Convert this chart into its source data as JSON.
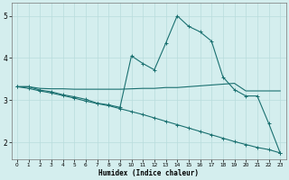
{
  "xlabel": "Humidex (Indice chaleur)",
  "bg_color": "#d4eeee",
  "line_color": "#1a7070",
  "grid_color": "#b8dcdc",
  "xlim": [
    -0.5,
    23.5
  ],
  "ylim": [
    1.6,
    5.3
  ],
  "yticks": [
    2,
    3,
    4,
    5
  ],
  "xticks": [
    0,
    1,
    2,
    3,
    4,
    5,
    6,
    7,
    8,
    9,
    10,
    11,
    12,
    13,
    14,
    15,
    16,
    17,
    18,
    19,
    20,
    21,
    22,
    23
  ],
  "line1_x": [
    0,
    1,
    2,
    3,
    4,
    5,
    6,
    7,
    8,
    9,
    10,
    11,
    12,
    13,
    14,
    15,
    16,
    17,
    18,
    19,
    20,
    21,
    22,
    23
  ],
  "line1_y": [
    3.32,
    3.32,
    3.24,
    3.2,
    3.13,
    3.08,
    3.02,
    2.93,
    2.89,
    2.83,
    4.05,
    3.87,
    3.72,
    4.35,
    5.0,
    4.75,
    4.62,
    4.4,
    3.55,
    3.25,
    3.1,
    3.1,
    2.45,
    1.75
  ],
  "line2_x": [
    0,
    1,
    2,
    3,
    4,
    5,
    6,
    7,
    8,
    9,
    10,
    11,
    12,
    13,
    14,
    15,
    16,
    17,
    18,
    19,
    20,
    21,
    22,
    23
  ],
  "line2_y": [
    3.32,
    3.32,
    3.28,
    3.27,
    3.27,
    3.26,
    3.26,
    3.26,
    3.26,
    3.26,
    3.27,
    3.28,
    3.28,
    3.3,
    3.3,
    3.32,
    3.34,
    3.36,
    3.38,
    3.4,
    3.22,
    3.22,
    3.22,
    3.22
  ],
  "line3_x": [
    0,
    1,
    2,
    3,
    4,
    5,
    6,
    7,
    8,
    9,
    10,
    11,
    12,
    13,
    14,
    15,
    16,
    17,
    18,
    19,
    20,
    21,
    22,
    23
  ],
  "line3_y": [
    3.32,
    3.28,
    3.22,
    3.17,
    3.11,
    3.05,
    2.98,
    2.92,
    2.87,
    2.8,
    2.73,
    2.66,
    2.58,
    2.5,
    2.42,
    2.34,
    2.26,
    2.18,
    2.1,
    2.02,
    1.95,
    1.88,
    1.83,
    1.75
  ],
  "marker_size": 2.5,
  "linewidth": 0.8
}
